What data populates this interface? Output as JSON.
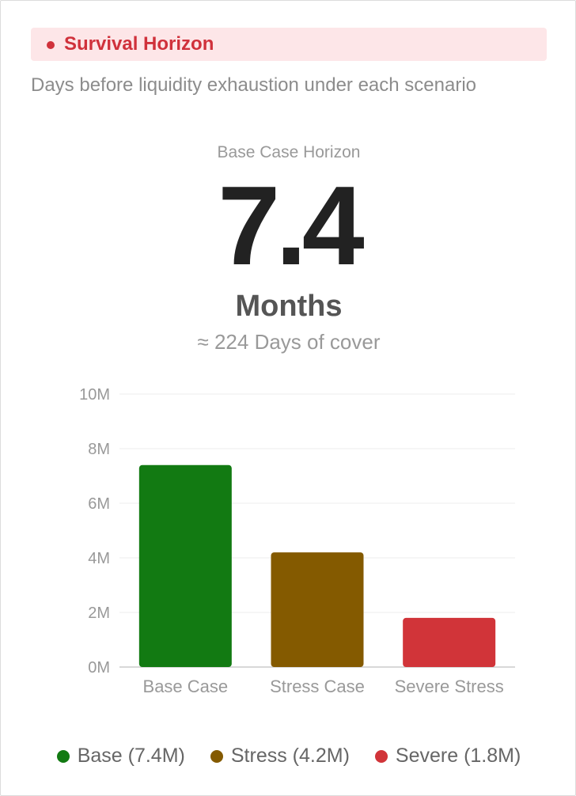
{
  "header": {
    "title": "Survival Horizon",
    "accent_color": "#d0313b",
    "background_color": "#fde6e8"
  },
  "subtitle": "Days before liquidity exhaustion under each scenario",
  "kpi": {
    "label": "Base Case Horizon",
    "value": "7.4",
    "unit": "Months",
    "note": "≈ 224 Days of cover"
  },
  "chart_data": {
    "type": "bar",
    "categories": [
      "Base Case",
      "Stress Case",
      "Severe Stress"
    ],
    "values": [
      7.4,
      4.2,
      1.8
    ],
    "colors": [
      "#127a12",
      "#845a00",
      "#d13439"
    ],
    "ylim": [
      0,
      10
    ],
    "yticks": [
      0,
      2,
      4,
      6,
      8,
      10
    ],
    "ytick_labels": [
      "0M",
      "2M",
      "4M",
      "6M",
      "8M",
      "10M"
    ],
    "grid": true,
    "legend_position": "bottom",
    "xlabel": "",
    "ylabel": ""
  },
  "legend": [
    {
      "label": "Base (7.4M)",
      "color": "#127a12"
    },
    {
      "label": "Stress (4.2M)",
      "color": "#845a00"
    },
    {
      "label": "Severe (1.8M)",
      "color": "#d13439"
    }
  ]
}
